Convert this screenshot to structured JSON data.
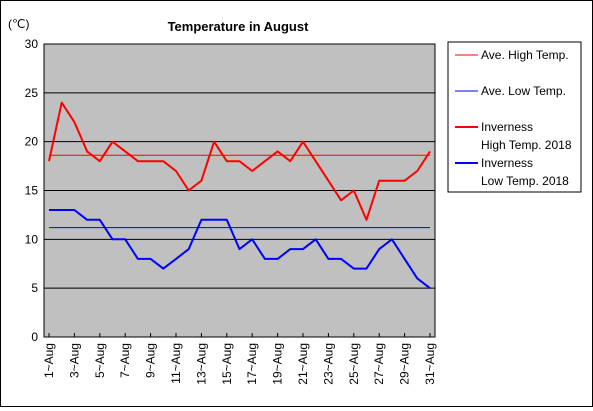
{
  "chart_data": {
    "type": "line",
    "title": "Temperature in August",
    "unit": "(℃)",
    "xlabel": "",
    "ylabel": "",
    "ylim": [
      0,
      30
    ],
    "yticks": [
      0,
      5,
      10,
      15,
      20,
      25,
      30
    ],
    "grid": "horizontal",
    "plot_background": "#c0c0c0",
    "legend_position": "right",
    "x": [
      "1~Aug",
      "2~Aug",
      "3~Aug",
      "4~Aug",
      "5~Aug",
      "6~Aug",
      "7~Aug",
      "8~Aug",
      "9~Aug",
      "10~Aug",
      "11~Aug",
      "12~Aug",
      "13~Aug",
      "14~Aug",
      "15~Aug",
      "16~Aug",
      "17~Aug",
      "18~Aug",
      "19~Aug",
      "20~Aug",
      "21~Aug",
      "22~Aug",
      "23~Aug",
      "24~Aug",
      "25~Aug",
      "26~Aug",
      "27~Aug",
      "28~Aug",
      "29~Aug",
      "30~Aug",
      "31~Aug"
    ],
    "xtick_labels": [
      "1~Aug",
      "3~Aug",
      "5~Aug",
      "7~Aug",
      "9~Aug",
      "11~Aug",
      "13~Aug",
      "15~Aug",
      "17~Aug",
      "19~Aug",
      "21~Aug",
      "23~Aug",
      "25~Aug",
      "27~Aug",
      "29~Aug",
      "31~Aug"
    ],
    "series": [
      {
        "name": "Ave. High Temp.",
        "color": "#ff0000",
        "style": "thin",
        "values": [
          18.6,
          18.6,
          18.6,
          18.6,
          18.6,
          18.6,
          18.6,
          18.6,
          18.6,
          18.6,
          18.6,
          18.6,
          18.6,
          18.6,
          18.6,
          18.6,
          18.6,
          18.6,
          18.6,
          18.6,
          18.6,
          18.6,
          18.6,
          18.6,
          18.6,
          18.6,
          18.6,
          18.6,
          18.6,
          18.6,
          18.6
        ]
      },
      {
        "name": "Ave. Low Temp.",
        "color": "#0000ff",
        "style": "thin",
        "values": [
          11.2,
          11.2,
          11.2,
          11.2,
          11.2,
          11.2,
          11.2,
          11.2,
          11.2,
          11.2,
          11.2,
          11.2,
          11.2,
          11.2,
          11.2,
          11.2,
          11.2,
          11.2,
          11.2,
          11.2,
          11.2,
          11.2,
          11.2,
          11.2,
          11.2,
          11.2,
          11.2,
          11.2,
          11.2,
          11.2,
          11.2
        ]
      },
      {
        "name_lines": [
          "Inverness",
          "High Temp. 2018"
        ],
        "color": "#ff0000",
        "style": "thick",
        "values": [
          18,
          24,
          22,
          19,
          18,
          20,
          19,
          18,
          18,
          18,
          17,
          15,
          16,
          20,
          18,
          18,
          17,
          18,
          19,
          18,
          20,
          18,
          16,
          14,
          15,
          12,
          16,
          16,
          16,
          17,
          19
        ]
      },
      {
        "name_lines": [
          "Inverness",
          "Low Temp. 2018"
        ],
        "color": "#0000ff",
        "style": "thick",
        "values": [
          13,
          13,
          13,
          12,
          12,
          10,
          10,
          8,
          8,
          7,
          8,
          9,
          12,
          12,
          12,
          9,
          10,
          8,
          8,
          9,
          9,
          10,
          8,
          8,
          7,
          7,
          9,
          10,
          8,
          6,
          5
        ]
      }
    ]
  }
}
